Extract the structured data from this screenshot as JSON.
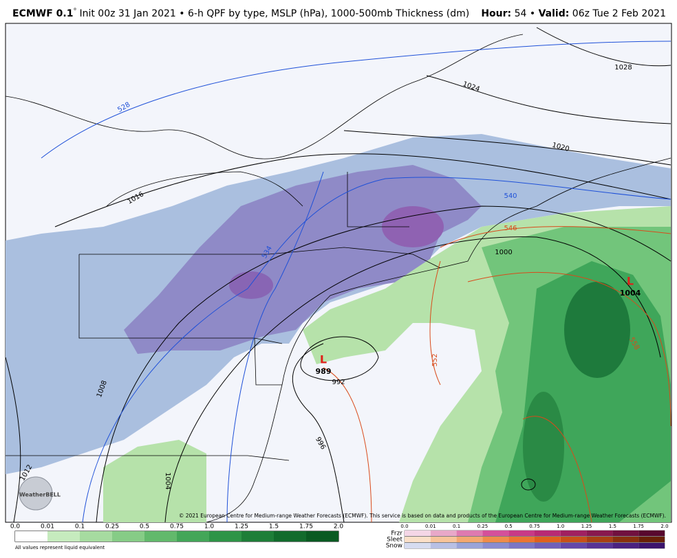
{
  "header": {
    "model": "ECMWF 0.1",
    "degree": "°",
    "description": "Init 00z 31 Jan 2021 • 6-h QPF by type, MSLP (hPa), 1000-500mb Thickness (dm)",
    "hour_label": "Hour:",
    "hour": "54",
    "separator": "•",
    "valid_label": "Valid:",
    "valid": "06z Tue 2 Feb 2021"
  },
  "map": {
    "isobar_labels": [
      "1028",
      "1024",
      "1020",
      "1016",
      "1012",
      "1008",
      "1004",
      "1000",
      "996",
      "992"
    ],
    "thickness_labels": [
      "528",
      "534",
      "540",
      "546",
      "552",
      "558"
    ],
    "lows": [
      {
        "symbol": "L",
        "pressure": "989"
      },
      {
        "symbol": "L",
        "pressure": "1004"
      }
    ],
    "copyright": "© 2021 European Centre for Medium-range Weather Forecasts (ECMWF). This service is based on data and products of the European Centre for Medium-range Weather Forecasts (ECMWF).",
    "logo": "WeatherBELL"
  },
  "legend": {
    "rain": {
      "ticks": [
        "0.0",
        "0.01",
        "0.1",
        "0.25",
        "0.5",
        "0.75",
        "1.0",
        "1.25",
        "1.5",
        "1.75",
        "2.0"
      ],
      "note": "All values represent liquid equivalent"
    },
    "ptype": {
      "types": [
        "Frzr",
        "Sleet",
        "Snow"
      ],
      "ticks": [
        "0.0",
        "0.01",
        "0.1",
        "0.25",
        "0.5",
        "0.75",
        "1.0",
        "1.25",
        "1.5",
        "1.75",
        "2.0"
      ]
    }
  }
}
